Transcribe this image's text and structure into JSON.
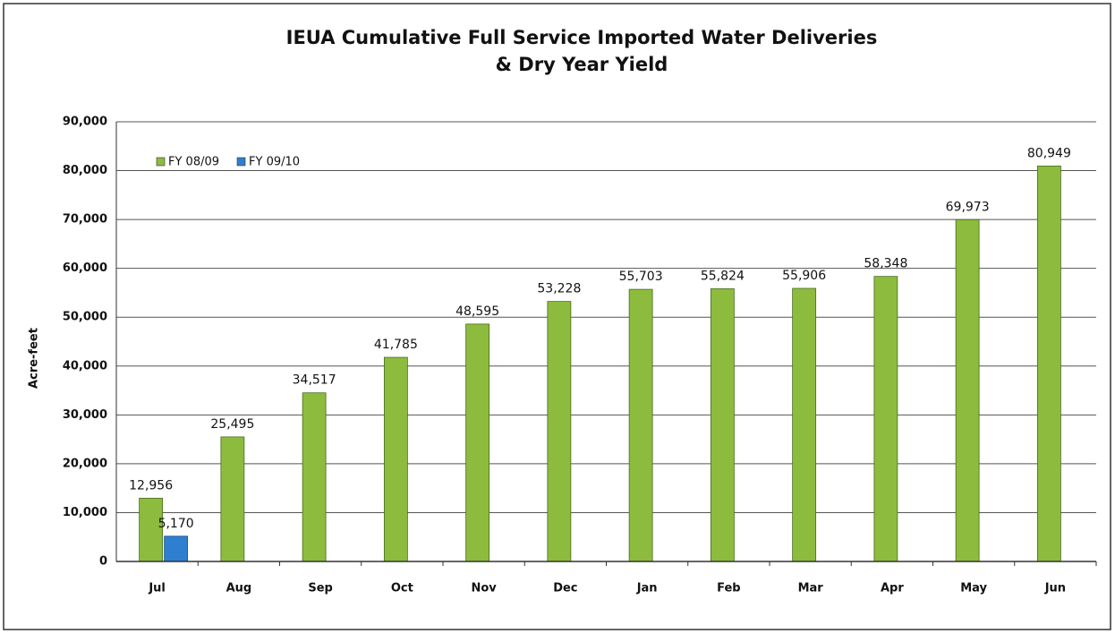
{
  "chart_data": {
    "type": "bar",
    "title": [
      "IEUA Cumulative Full Service Imported Water Deliveries",
      "& Dry Year Yield"
    ],
    "y_label": "Acre-feet",
    "categories": [
      "Jul",
      "Aug",
      "Sep",
      "Oct",
      "Nov",
      "Dec",
      "Jan",
      "Feb",
      "Mar",
      "Apr",
      "May",
      "Jun"
    ],
    "series": [
      {
        "name": "FY 08/09",
        "color": "#8dbb3e",
        "values": [
          12956,
          25495,
          34517,
          41785,
          48595,
          53228,
          55703,
          55824,
          55906,
          58348,
          69973,
          80949
        ],
        "value_labels": [
          "12,956",
          "25,495",
          "34,517",
          "41,785",
          "48,595",
          "53,228",
          "55,703",
          "55,824",
          "55,906",
          "58,348",
          "69,973",
          "80,949"
        ]
      },
      {
        "name": "FY 09/10",
        "color": "#2f7fd0",
        "values": [
          5170,
          null,
          null,
          null,
          null,
          null,
          null,
          null,
          null,
          null,
          null,
          null
        ],
        "value_labels": [
          "5,170",
          null,
          null,
          null,
          null,
          null,
          null,
          null,
          null,
          null,
          null,
          null
        ]
      }
    ],
    "ylim": [
      0,
      90000
    ],
    "yticks": [
      0,
      {
        "value": 10000,
        "label": "10,000"
      },
      {
        "value": 20000,
        "label": "20,000"
      },
      {
        "value": 30000,
        "label": "30,000"
      },
      {
        "value": 40000,
        "label": "40,000"
      },
      {
        "value": 50000,
        "label": "50,000"
      },
      {
        "value": 60000,
        "label": "60,000"
      },
      {
        "value": 70000,
        "label": "70,000"
      },
      {
        "value": 80000,
        "label": "80,000"
      },
      {
        "value": 90000,
        "label": "90,000"
      }
    ],
    "grid": true,
    "legend": "top-left"
  }
}
